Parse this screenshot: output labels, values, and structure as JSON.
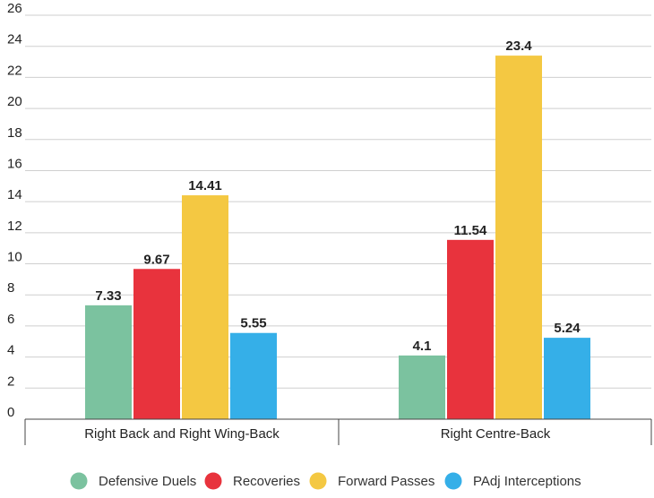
{
  "chart_data": {
    "type": "bar",
    "title": "",
    "xlabel": "",
    "ylabel": "",
    "ylim": [
      0,
      26
    ],
    "yticks": [
      0,
      2,
      4,
      6,
      8,
      10,
      12,
      14,
      16,
      18,
      20,
      22,
      24,
      26
    ],
    "grid": true,
    "legend_position": "bottom",
    "categories": [
      "Right Back and Right Wing-Back",
      "Right Centre-Back"
    ],
    "series": [
      {
        "name": "Defensive Duels",
        "color": "#7bc29f",
        "values": [
          7.33,
          4.1
        ],
        "labels": [
          "7.33",
          "4.1"
        ]
      },
      {
        "name": "Recoveries",
        "color": "#e8333d",
        "values": [
          9.67,
          11.54
        ],
        "labels": [
          "9.67",
          "11.54"
        ]
      },
      {
        "name": "Forward Passes",
        "color": "#f4c842",
        "values": [
          14.41,
          23.4
        ],
        "labels": [
          "14.41",
          "23.4"
        ]
      },
      {
        "name": "PAdj Interceptions",
        "color": "#35afe8",
        "values": [
          5.55,
          5.24
        ],
        "labels": [
          "5.55",
          "5.24"
        ]
      }
    ]
  }
}
